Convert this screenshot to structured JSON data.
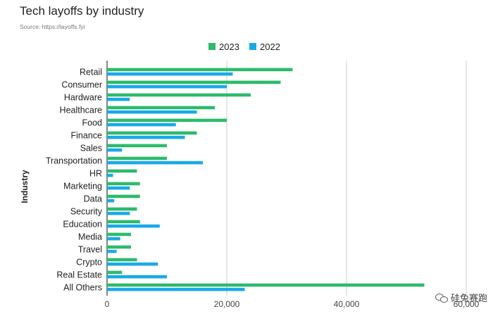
{
  "chart_data": {
    "type": "bar",
    "orientation": "horizontal",
    "title": "Tech layoffs by industry",
    "subtitle": "Source: https://layoffs.fyi",
    "ylabel": "Industry",
    "xlabel": "",
    "xlim": [
      0,
      60000
    ],
    "xticks": [
      0,
      20000,
      40000,
      60000
    ],
    "xtick_labels": [
      "0",
      "20,000",
      "40,000",
      "60,000"
    ],
    "grid": true,
    "legend_position": "top",
    "categories": [
      "Retail",
      "Consumer",
      "Hardware",
      "Healthcare",
      "Food",
      "Finance",
      "Sales",
      "Transportation",
      "HR",
      "Marketing",
      "Data",
      "Security",
      "Education",
      "Media",
      "Travel",
      "Crypto",
      "Real Estate",
      "All Others"
    ],
    "series": [
      {
        "name": "2023",
        "color": "#2dbb6c",
        "values": [
          31000,
          29000,
          24000,
          18000,
          20000,
          15000,
          10000,
          10000,
          5000,
          5500,
          5500,
          5000,
          5500,
          4000,
          4000,
          5000,
          2500,
          53000
        ]
      },
      {
        "name": "2022",
        "color": "#1aa9e6",
        "values": [
          21000,
          20000,
          3800,
          15000,
          11500,
          13000,
          2500,
          16000,
          1000,
          3800,
          1200,
          3800,
          8800,
          2200,
          1600,
          8500,
          10000,
          23000
        ]
      }
    ]
  },
  "watermark": {
    "text": "硅兔赛跑",
    "icon": "wechat-logo-icon"
  }
}
